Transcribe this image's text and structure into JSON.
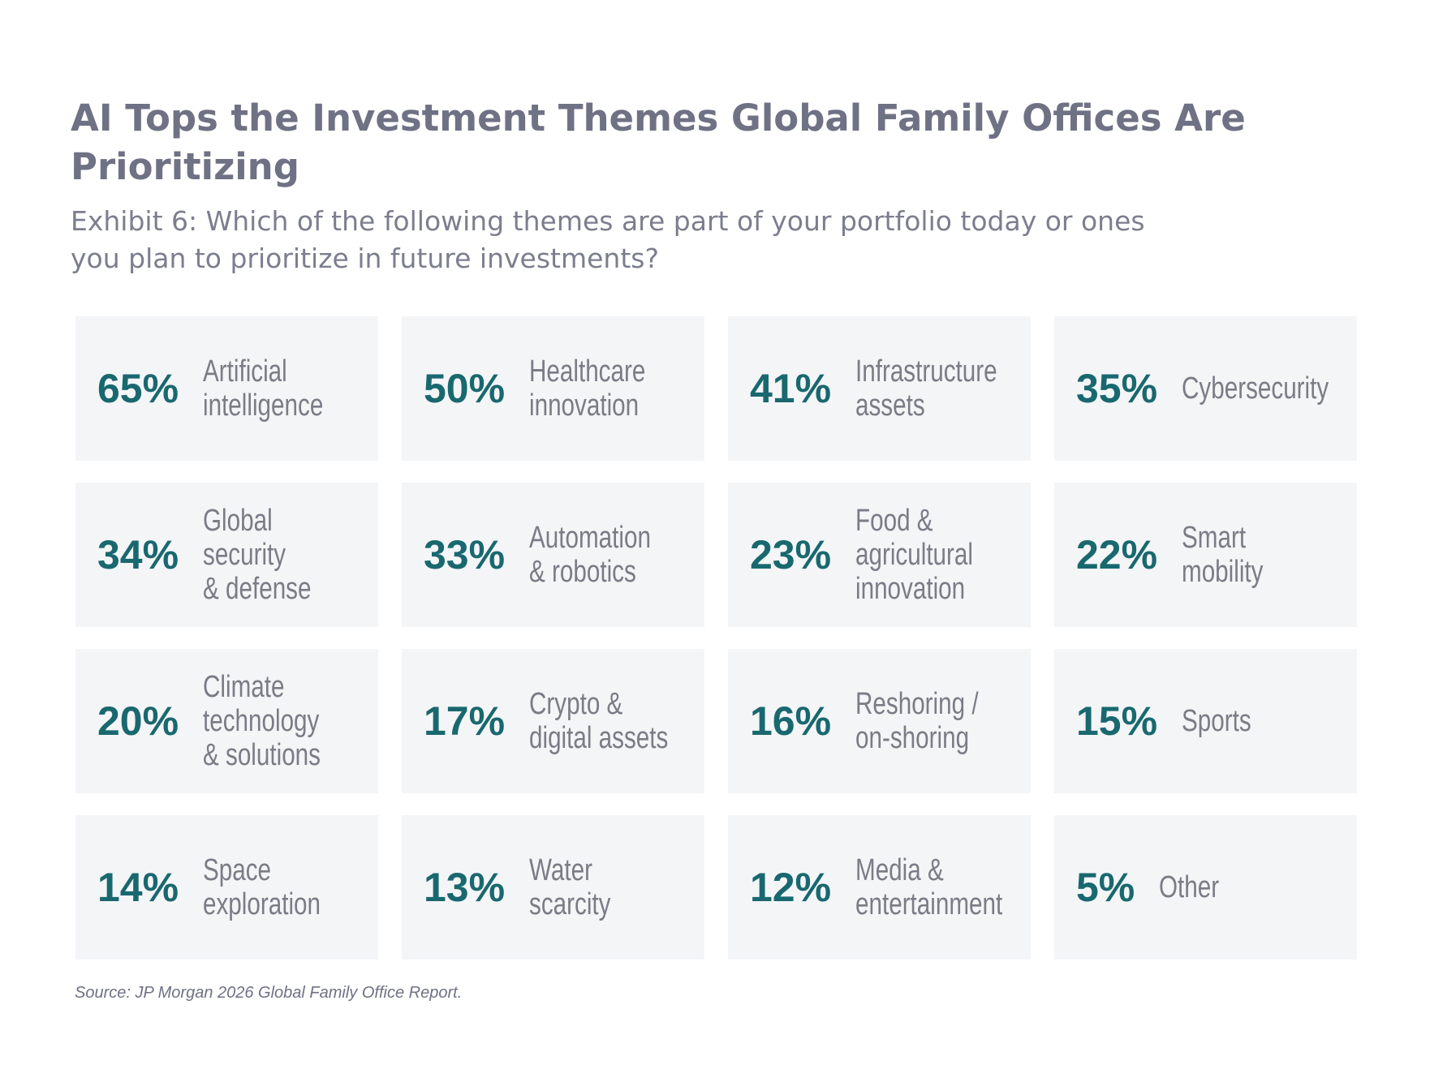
{
  "header": {
    "title": [
      "AI Tops the Investment Themes Global Family Offices Are",
      "Prioritizing"
    ],
    "subtitle": [
      "Exhibit 6: Which of the following themes are part of your portfolio today or ones",
      "you plan to prioritize in future investments?"
    ]
  },
  "tiles": [
    {
      "value": "65%",
      "label": [
        "Artificial",
        "intelligence"
      ]
    },
    {
      "value": "50%",
      "label": [
        "Healthcare",
        "innovation"
      ]
    },
    {
      "value": "41%",
      "label": [
        "Infrastructure",
        "assets"
      ]
    },
    {
      "value": "35%",
      "label": [
        "Cybersecurity"
      ]
    },
    {
      "value": "34%",
      "label": [
        "Global",
        "security",
        "& defense"
      ]
    },
    {
      "value": "33%",
      "label": [
        "Automation",
        "& robotics"
      ]
    },
    {
      "value": "23%",
      "label": [
        "Food &",
        "agricultural",
        "innovation"
      ]
    },
    {
      "value": "22%",
      "label": [
        "Smart",
        "mobility"
      ]
    },
    {
      "value": "20%",
      "label": [
        "Climate",
        "technology",
        "& solutions"
      ]
    },
    {
      "value": "17%",
      "label": [
        "Crypto &",
        "digital assets"
      ]
    },
    {
      "value": "16%",
      "label": [
        "Reshoring /",
        "on-shoring"
      ]
    },
    {
      "value": "15%",
      "label": [
        "Sports"
      ]
    },
    {
      "value": "14%",
      "label": [
        "Space",
        "exploration"
      ]
    },
    {
      "value": "13%",
      "label": [
        "Water",
        "scarcity"
      ]
    },
    {
      "value": "12%",
      "label": [
        "Media &",
        "entertainment"
      ]
    },
    {
      "value": "5%",
      "label": [
        "Other"
      ]
    }
  ],
  "source": "Source: JP Morgan 2026 Global Family Office Report."
}
